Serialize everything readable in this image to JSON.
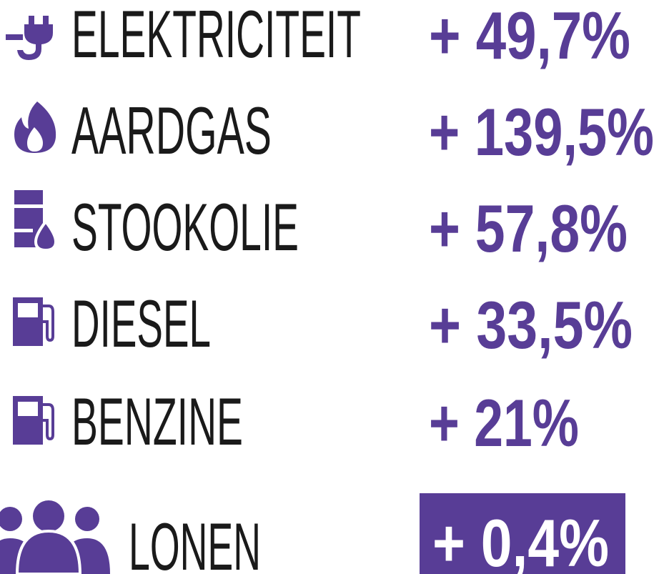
{
  "rows": [
    {
      "label": "ELEKTRICITEIT",
      "value": "+ 49,7%"
    },
    {
      "label": "AARDGAS",
      "value": "+ 139,5%"
    },
    {
      "label": "STOOKOLIE",
      "value": "+ 57,8%"
    },
    {
      "label": "DIESEL",
      "value": "+ 33,5%"
    },
    {
      "label": "BENZINE",
      "value": "+ 21%"
    },
    {
      "label": "LONEN",
      "value": "+ 0,4%"
    }
  ]
}
